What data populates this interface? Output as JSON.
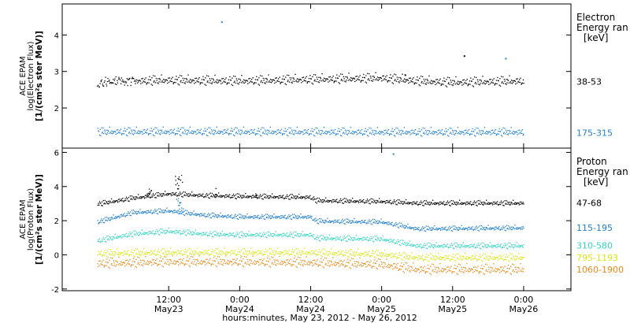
{
  "chart_data": [
    {
      "type": "scatter",
      "panel": "electron",
      "ylabel": [
        "ACE EPAM",
        "log(Electron Flux)",
        "[1/(cm²s ster MeV)]"
      ],
      "ylim": [
        0.9,
        4.85
      ],
      "yticks": [
        2,
        3,
        4
      ],
      "legend_title": [
        "Electron",
        "Energy ran",
        "[keV]"
      ],
      "series": [
        {
          "name": "38-53",
          "color": "#000000",
          "level": 2.72,
          "noise": 0.07,
          "x": [
            "May 23 00:00",
            "May 23 12:00",
            "May 24 00:00",
            "May 24 12:00",
            "May 25 00:00",
            "May 25 06:00",
            "May 25 12:00",
            "May 26 00:00"
          ],
          "y": [
            2.7,
            2.74,
            2.72,
            2.76,
            2.8,
            2.72,
            2.68,
            2.72
          ]
        },
        {
          "name": "175-315",
          "color": "#1e7fd0",
          "level": 1.33,
          "noise": 0.06,
          "x": [
            "May 23 00:00",
            "May 24 00:00",
            "May 25 00:00",
            "May 26 00:00"
          ],
          "y": [
            1.33,
            1.33,
            1.32,
            1.32
          ]
        }
      ],
      "annotations": [
        {
          "x": "May 23 21:00",
          "y": 4.35,
          "color": "#1e7fd0"
        },
        {
          "x": "May 25 04:00",
          "y": 2.9,
          "color": "#000000"
        },
        {
          "x": "May 25 14:00",
          "y": 3.42,
          "color": "#000000"
        },
        {
          "x": "May 25 21:00",
          "y": 3.35,
          "color": "#1e7fd0"
        }
      ]
    },
    {
      "type": "scatter",
      "panel": "proton",
      "ylabel": [
        "ACE EPAM",
        "log(Proton Flux)",
        "[1/(cm²s ster MeV)]"
      ],
      "ylim": [
        -2.1,
        6.25
      ],
      "yticks": [
        -2,
        0,
        2,
        4,
        6
      ],
      "legend_title": [
        "Proton",
        "Energy ran",
        "[keV]"
      ],
      "series": [
        {
          "name": "47-68",
          "color": "#000000",
          "noise": 0.08,
          "x": [
            "May 23 00:00",
            "May 23 06:00",
            "May 23 12:00",
            "May 23 18:00",
            "May 24 00:00",
            "May 24 12:00",
            "May 24 13:00",
            "May 25 00:00",
            "May 25 06:00",
            "May 26 00:00"
          ],
          "y": [
            2.95,
            3.3,
            3.55,
            3.45,
            3.4,
            3.35,
            3.15,
            3.1,
            3.0,
            3.0
          ]
        },
        {
          "name": "115-195",
          "color": "#1e7fd0",
          "noise": 0.08,
          "x": [
            "May 23 00:00",
            "May 23 06:00",
            "May 23 12:00",
            "May 23 18:00",
            "May 24 00:00",
            "May 24 12:00",
            "May 24 13:00",
            "May 25 00:00",
            "May 25 06:00",
            "May 26 00:00"
          ],
          "y": [
            1.9,
            2.45,
            2.55,
            2.3,
            2.2,
            2.2,
            1.95,
            1.9,
            1.5,
            1.55
          ]
        },
        {
          "name": "310-580",
          "color": "#35d5c2",
          "noise": 0.09,
          "x": [
            "May 23 00:00",
            "May 23 06:00",
            "May 23 12:00",
            "May 23 18:00",
            "May 24 00:00",
            "May 24 12:00",
            "May 24 13:00",
            "May 25 00:00",
            "May 25 06:00",
            "May 26 00:00"
          ],
          "y": [
            0.8,
            1.2,
            1.35,
            1.2,
            1.15,
            1.15,
            0.95,
            0.9,
            0.5,
            0.5
          ]
        },
        {
          "name": "795-1193",
          "color": "#d9e613",
          "noise": 0.12,
          "x": [
            "May 23 00:00",
            "May 23 12:00",
            "May 24 00:00",
            "May 24 12:00",
            "May 25 00:00",
            "May 25 06:00",
            "May 26 00:00"
          ],
          "y": [
            0.05,
            0.1,
            0.1,
            0.1,
            0.0,
            -0.2,
            -0.2
          ]
        },
        {
          "name": "1060-1900",
          "color": "#e88a1a",
          "noise": 0.16,
          "x": [
            "May 23 00:00",
            "May 23 12:00",
            "May 24 00:00",
            "May 24 12:00",
            "May 25 00:00",
            "May 25 06:00",
            "May 26 00:00"
          ],
          "y": [
            -0.55,
            -0.45,
            -0.45,
            -0.5,
            -0.6,
            -0.9,
            -0.9
          ]
        }
      ],
      "annotations": [
        {
          "x": "May 25 02:00",
          "y": 5.9,
          "color": "#1e7fd0"
        }
      ]
    }
  ],
  "x_axis": {
    "ticks": [
      {
        "time": "12:00",
        "date": "May23"
      },
      {
        "time": "0:00",
        "date": "May24"
      },
      {
        "time": "12:00",
        "date": "May24"
      },
      {
        "time": "0:00",
        "date": "May25"
      },
      {
        "time": "12:00",
        "date": "May25"
      },
      {
        "time": "0:00",
        "date": "May26"
      }
    ],
    "label": "hours:minutes, May 23, 2012 - May 26, 2012",
    "range": [
      "May 22 18:00",
      "May 26 08:00"
    ]
  }
}
